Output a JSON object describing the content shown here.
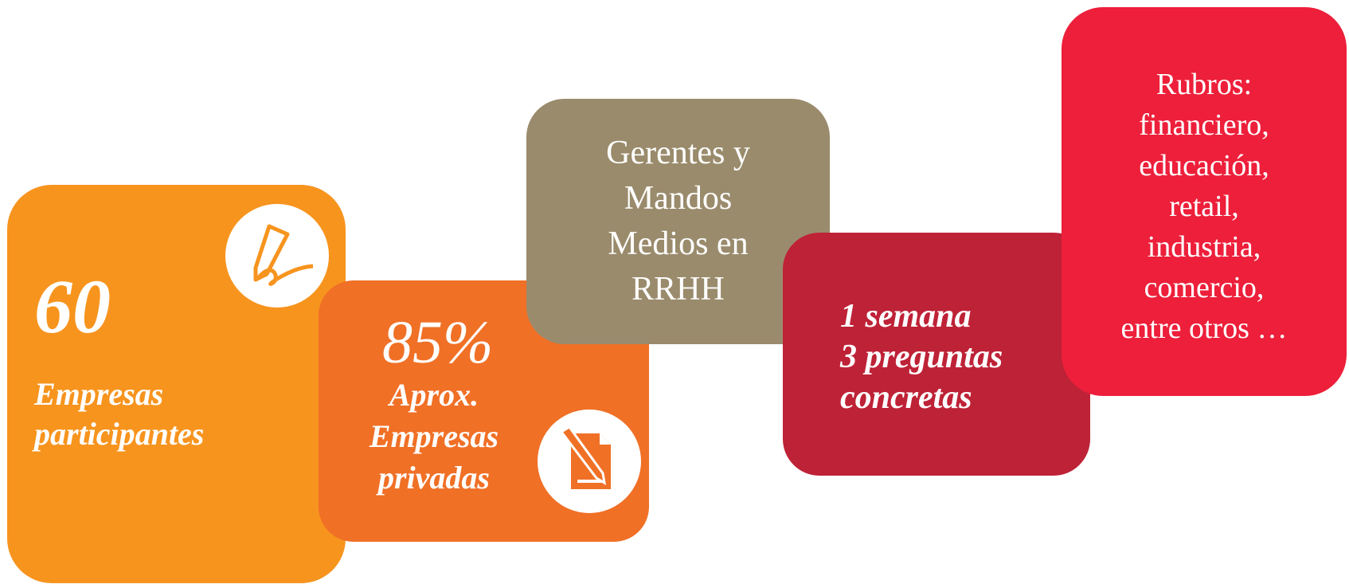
{
  "cards": [
    {
      "number": "60",
      "lines": [
        "Empresas",
        "participantes"
      ]
    },
    {
      "number": "85%",
      "lines": [
        "Aprox.",
        "Empresas",
        "privadas"
      ]
    },
    {
      "lines": [
        "Gerentes y",
        "Mandos",
        "Medios en",
        "RRHH"
      ]
    },
    {
      "lines": [
        "1 semana",
        "3 preguntas",
        "concretas"
      ]
    },
    {
      "lines": [
        "Rubros:",
        "financiero,",
        "educación,",
        "retail,",
        "industria,",
        "comercio,",
        "entre otros …"
      ]
    }
  ]
}
